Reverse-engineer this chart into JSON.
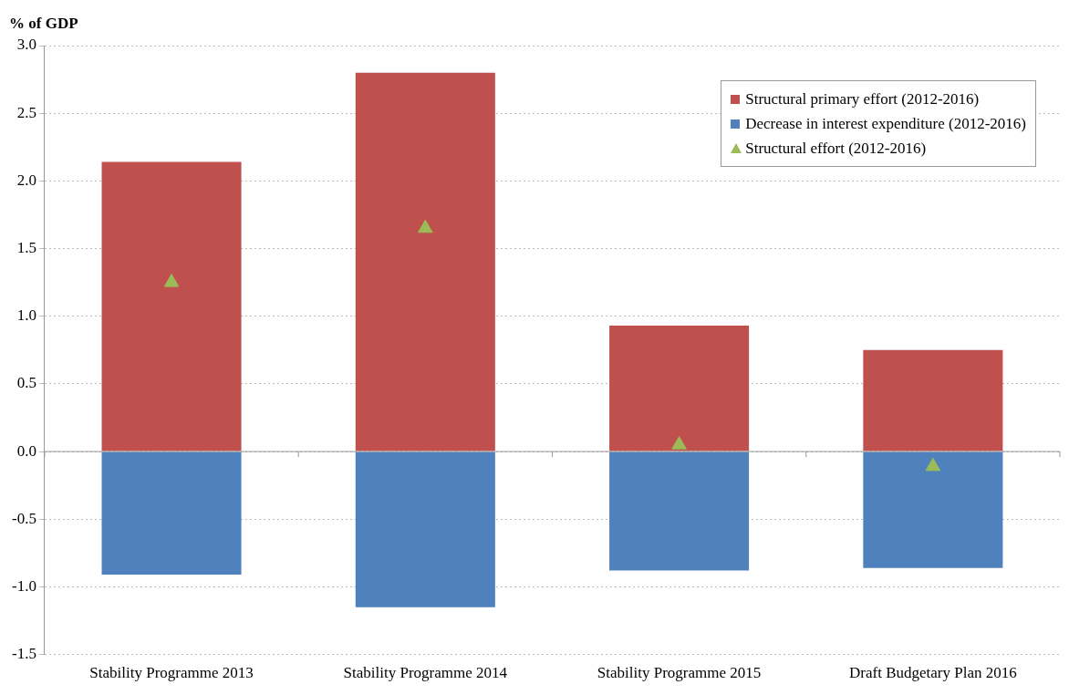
{
  "chart_data": {
    "type": "bar",
    "stacked": true,
    "ylabel": "% of GDP",
    "categories": [
      "Stability Programme 2013",
      "Stability Programme 2014",
      "Stability Programme 2015",
      "Draft Budgetary Plan 2016"
    ],
    "series": [
      {
        "name": "Structural primary effort (2012-2016)",
        "color": "#c0504d",
        "values": [
          2.14,
          2.8,
          0.93,
          0.75
        ]
      },
      {
        "name": "Decrease in interest expenditure (2012-2016)",
        "color": "#4f81bd",
        "values": [
          -0.91,
          -1.15,
          -0.88,
          -0.86
        ]
      },
      {
        "name": "Structural effort (2012-2016)",
        "type": "scatter",
        "marker": "triangle",
        "color": "#9bbb59",
        "x": [
          "Stability Programme 2013",
          "Stability Programme 2014",
          "Stability Programme 2015",
          "Draft Budgetary Plan 2016"
        ],
        "values": [
          1.25,
          1.65,
          0.05,
          -0.11
        ]
      }
    ],
    "ylim": [
      -1.5,
      3.0
    ],
    "yticks": [
      {
        "value": -1.5,
        "label": "-1.5"
      },
      {
        "value": -1,
        "label": "-1.0"
      },
      {
        "value": -0.5,
        "label": "-0.5"
      },
      {
        "value": 0,
        "label": "0.0"
      },
      {
        "value": 0.5,
        "label": "0.5"
      },
      {
        "value": 1,
        "label": "1.0"
      },
      {
        "value": 1.5,
        "label": "1.5"
      },
      {
        "value": 2,
        "label": "2.0"
      },
      {
        "value": 2.5,
        "label": "2.5"
      },
      {
        "value": 3,
        "label": "3.0"
      }
    ],
    "grid": "y",
    "legend": "top right"
  }
}
